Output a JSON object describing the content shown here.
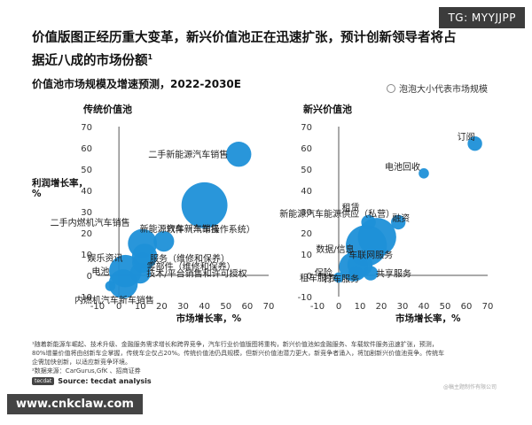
{
  "watermark": {
    "tg": "TG: MYYJJPP",
    "url": "www.cnkclaw.com",
    "small_note": "@稿主题制作有限公司"
  },
  "headline_line1": "价值版图正经历重大变革，新兴价值池正在迅速扩张，预计创新领导者将占",
  "headline_line2": "据近八成的市场份额",
  "headline_sup": "1",
  "subtitle": "价值池市场规模及增速预测，2022-2030E",
  "legend_label": "泡泡大小代表市场规模",
  "footnote1": "¹随着新能源车崛起、技术升级、金融服务需求增长和跨界竞争，汽车行业价值版图将重构，新兴价值池如金融服务、车载软件服务迅速扩张，预测，",
  "footnote2": "80%增量价值将由创新车企掌握，传统车企仅占20%。传统价值池仍具规模，但新兴价值池潜力更大，新竞争者涌入，将加剧新兴价值池竞争。传统车",
  "footnote3": "企需加快创新，以适应新竞争环境。",
  "footnote4": "²数据来源：CarGurus,GfK 、招商证券",
  "source": "Source: tecdat analysis",
  "source_logo": "tecdat",
  "colors": {
    "bubble": "#1e90d8",
    "axis": "#555555",
    "grid": "#cfcfcf",
    "label": "#222222"
  },
  "chart_data": [
    {
      "type": "scatter",
      "title": "传统价值池",
      "xlabel": "市场增长率，%",
      "ylabel_line1": "利润增长率，",
      "ylabel_line2": "%",
      "xlim": [
        -10,
        70
      ],
      "ylim": [
        -10,
        70
      ],
      "xticks": [
        -10,
        0,
        10,
        20,
        30,
        40,
        50,
        60,
        70
      ],
      "yticks": [
        -10,
        0,
        10,
        20,
        30,
        40,
        50,
        60,
        70
      ],
      "points": [
        {
          "label": "二手新能源汽车销售",
          "x": 56,
          "y": 57,
          "size": 3
        },
        {
          "label": "新能源汽车新车销售",
          "x": 40,
          "y": 33,
          "size": 10
        },
        {
          "label": "二手内燃机汽车销售",
          "x": 11,
          "y": 15,
          "size": 4
        },
        {
          "label": "软件（汽车操作系统）",
          "x": 21,
          "y": 16,
          "size": 2
        },
        {
          "label": "服务（维修和保养）",
          "x": 12,
          "y": 9,
          "size": 3
        },
        {
          "label": "零部件（维修和保养）",
          "x": 11,
          "y": 6,
          "size": 2
        },
        {
          "label": "技术/平台销售和许可授权",
          "x": 10,
          "y": 1,
          "size": 2
        },
        {
          "label": "电池",
          "x": 3,
          "y": 2,
          "size": 5
        },
        {
          "label": "娱乐资讯",
          "x": -4,
          "y": -5,
          "size": 0.5
        },
        {
          "label": "内燃机汽车新车销售",
          "x": 2,
          "y": -4,
          "size": 4
        }
      ]
    },
    {
      "type": "scatter",
      "title": "新兴价值池",
      "xlabel": "市场增长率，%",
      "xlim": [
        -10,
        70
      ],
      "ylim": [
        -10,
        70
      ],
      "xticks": [
        -10,
        0,
        10,
        20,
        30,
        40,
        50,
        60,
        70
      ],
      "yticks": [
        -10,
        0,
        10,
        20,
        30,
        40,
        50,
        60,
        70
      ],
      "points": [
        {
          "label": "订阅",
          "x": 64,
          "y": 62,
          "size": 1
        },
        {
          "label": "电池回收",
          "x": 40,
          "y": 48,
          "size": 0.5
        },
        {
          "label": "新能源汽车能源供应（私营）",
          "x": 28,
          "y": 25,
          "size": 1
        },
        {
          "label": "融资",
          "x": 18,
          "y": 18,
          "size": 7
        },
        {
          "label": "车联网服务",
          "x": 13,
          "y": 14,
          "size": 8
        },
        {
          "label": "租赁",
          "x": 14,
          "y": 25,
          "size": 1
        },
        {
          "label": "数据/信息",
          "x": 10,
          "y": 5,
          "size": 3
        },
        {
          "label": "保险",
          "x": 7,
          "y": 4,
          "size": 4
        },
        {
          "label": "共享服务",
          "x": 15,
          "y": 1,
          "size": 1
        },
        {
          "label": "租车服务",
          "x": 0,
          "y": -1,
          "size": 0.5
        },
        {
          "label": "打车服务",
          "x": 8,
          "y": 1,
          "size": 1
        }
      ]
    }
  ]
}
